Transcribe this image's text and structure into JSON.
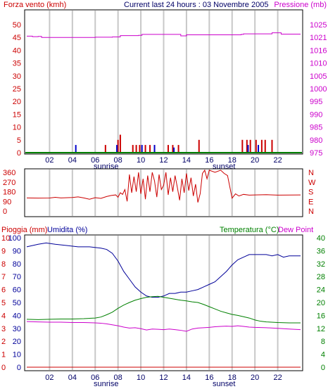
{
  "colors": {
    "wind": "#cc0000",
    "gust": "#0000cc",
    "calm": "#008000",
    "pressure": "#cc00cc",
    "direction": "#cc0000",
    "rain": "#cc0000",
    "humidity": "#000099",
    "temperature": "#008000",
    "dewpoint": "#cc00cc",
    "grid": "#c8c8c8",
    "text_dark": "#000066"
  },
  "header": {
    "left": "Forza vento (kmh)",
    "center": "Current last 24 hours : 03 Novembre 2005",
    "right": "Pressione (mb)"
  },
  "chart_data": [
    {
      "type": "bar",
      "title": "Current last 24 hours : 03 Novembre 2005",
      "ylabel": "Forza vento (kmh)",
      "y2label": "Pressione (mb)",
      "ylim": [
        0,
        50
      ],
      "y2lim": [
        975,
        1025
      ],
      "yticks": [
        "50",
        "45",
        "40",
        "35",
        "30",
        "25",
        "20",
        "15",
        "10",
        "5",
        "0"
      ],
      "y2ticks": [
        "1025",
        "1021",
        "1016",
        "1010",
        "1005",
        "1000",
        "995",
        "990",
        "985",
        "980",
        "975"
      ],
      "xlabels": [
        "02",
        "04",
        "06",
        "08",
        "10",
        "12",
        "14",
        "16",
        "18",
        "20",
        "22"
      ],
      "sunrise": "sunrise",
      "sunset": "sunset",
      "wind_bars": [
        [
          6.9,
          3
        ],
        [
          8.0,
          5
        ],
        [
          8.2,
          7
        ],
        [
          9.3,
          3
        ],
        [
          9.6,
          3
        ],
        [
          9.9,
          3
        ],
        [
          10.4,
          3
        ],
        [
          10.8,
          3
        ],
        [
          11.2,
          3
        ],
        [
          12.4,
          3
        ],
        [
          12.8,
          3
        ],
        [
          13.3,
          3
        ],
        [
          15.1,
          5
        ],
        [
          18.9,
          5
        ],
        [
          19.3,
          5
        ],
        [
          19.6,
          5
        ],
        [
          20.1,
          5
        ],
        [
          20.6,
          5
        ],
        [
          20.9,
          5
        ],
        [
          21.5,
          5
        ]
      ],
      "gust_bars": [
        [
          4.3,
          3
        ],
        [
          7.9,
          3
        ],
        [
          10.1,
          3
        ],
        [
          11.2,
          3
        ],
        [
          12.9,
          2
        ],
        [
          19.4,
          3
        ],
        [
          20.3,
          3
        ]
      ],
      "pressure": [
        [
          0.0,
          1020.5
        ],
        [
          0.5,
          1020.3
        ],
        [
          1.0,
          1020.4
        ],
        [
          1.3,
          1020.0
        ],
        [
          2.0,
          1020.0
        ],
        [
          4.0,
          1020.0
        ],
        [
          6.0,
          1020.1
        ],
        [
          7.5,
          1020.2
        ],
        [
          8.0,
          1020.2
        ],
        [
          8.2,
          1020.7
        ],
        [
          9.8,
          1020.8
        ],
        [
          10.1,
          1021.2
        ],
        [
          12.0,
          1021.2
        ],
        [
          13.2,
          1021.2
        ],
        [
          13.5,
          1020.6
        ],
        [
          14.0,
          1021.0
        ],
        [
          18.8,
          1021.2
        ],
        [
          19.0,
          1021.4
        ],
        [
          21.0,
          1021.4
        ],
        [
          21.5,
          1021.8
        ],
        [
          22.3,
          1021.3
        ],
        [
          24.0,
          1021.3
        ]
      ]
    },
    {
      "type": "line",
      "ylabel": "Direzione vento",
      "ylim": [
        0,
        360
      ],
      "yticks": [
        "360",
        "270",
        "180",
        "90",
        "0"
      ],
      "y2ticks": [
        "N",
        "W",
        "S",
        "E",
        "N"
      ],
      "direction": [
        [
          0.0,
          122
        ],
        [
          1.0,
          120
        ],
        [
          2.0,
          121
        ],
        [
          2.5,
          128
        ],
        [
          3.0,
          122
        ],
        [
          4.0,
          126
        ],
        [
          4.5,
          132
        ],
        [
          5.0,
          122
        ],
        [
          5.5,
          110
        ],
        [
          6.0,
          124
        ],
        [
          6.5,
          118
        ],
        [
          7.0,
          135
        ],
        [
          7.4,
          145
        ],
        [
          7.8,
          150
        ],
        [
          8.0,
          128
        ],
        [
          8.2,
          170
        ],
        [
          8.4,
          155
        ],
        [
          8.6,
          200
        ],
        [
          8.8,
          90
        ],
        [
          9.0,
          340
        ],
        [
          9.2,
          170
        ],
        [
          9.4,
          320
        ],
        [
          9.6,
          180
        ],
        [
          9.8,
          360
        ],
        [
          10.0,
          160
        ],
        [
          10.2,
          300
        ],
        [
          10.4,
          110
        ],
        [
          10.6,
          330
        ],
        [
          10.8,
          180
        ],
        [
          11.0,
          360
        ],
        [
          11.2,
          280
        ],
        [
          11.4,
          130
        ],
        [
          11.6,
          340
        ],
        [
          11.8,
          200
        ],
        [
          12.0,
          240
        ],
        [
          12.2,
          360
        ],
        [
          12.4,
          150
        ],
        [
          12.6,
          310
        ],
        [
          12.8,
          180
        ],
        [
          13.0,
          330
        ],
        [
          13.2,
          220
        ],
        [
          13.4,
          100
        ],
        [
          13.6,
          300
        ],
        [
          13.8,
          170
        ],
        [
          14.0,
          350
        ],
        [
          14.2,
          190
        ],
        [
          14.4,
          310
        ],
        [
          14.6,
          140
        ],
        [
          14.8,
          250
        ],
        [
          15.0,
          80
        ],
        [
          15.2,
          160
        ],
        [
          15.4,
          350
        ],
        [
          15.6,
          380
        ],
        [
          15.8,
          300
        ],
        [
          16.0,
          380
        ],
        [
          16.5,
          360
        ],
        [
          17.0,
          380
        ],
        [
          17.3,
          350
        ],
        [
          17.6,
          330
        ],
        [
          18.0,
          120
        ],
        [
          18.3,
          160
        ],
        [
          18.6,
          140
        ],
        [
          19.0,
          155
        ],
        [
          19.5,
          148
        ],
        [
          20.0,
          150
        ],
        [
          21.0,
          152
        ],
        [
          22.0,
          148
        ],
        [
          24.0,
          150
        ]
      ]
    },
    {
      "type": "line",
      "header_left": "Pioggia (mm)",
      "header_mid": "Umidita (%)",
      "header_right": "Temperatura (°C)",
      "header_right2": "Dew Point",
      "rain_ticks": [
        "10",
        "9",
        "8",
        "7",
        "6",
        "5",
        "4",
        "3",
        "2",
        "1",
        "0"
      ],
      "humidity_ticks": [
        "100",
        "90",
        "80",
        "70",
        "60",
        "50",
        "40",
        "30",
        "20",
        "10",
        "0"
      ],
      "temp_ticks": [
        "40",
        "36",
        "32",
        "28",
        "24",
        "20",
        "16",
        "12",
        "8",
        "4",
        "0"
      ],
      "ylim_temp": [
        0,
        40
      ],
      "ylim_hum": [
        0,
        100
      ],
      "xlabels": [
        "02",
        "04",
        "06",
        "08",
        "10",
        "12",
        "14",
        "16",
        "18",
        "20",
        "22"
      ],
      "sunrise": "sunrise",
      "sunset": "sunset",
      "series": [
        {
          "name": "Umidita (%)",
          "points": [
            [
              0.0,
              93
            ],
            [
              1.0,
              95
            ],
            [
              1.7,
              96
            ],
            [
              2.5,
              95
            ],
            [
              3.5,
              94
            ],
            [
              4.5,
              93
            ],
            [
              5.5,
              93
            ],
            [
              6.5,
              92
            ],
            [
              7.0,
              91
            ],
            [
              7.5,
              88
            ],
            [
              8.0,
              82
            ],
            [
              8.5,
              74
            ],
            [
              9.0,
              68
            ],
            [
              9.5,
              62
            ],
            [
              10.0,
              58
            ],
            [
              10.5,
              55
            ],
            [
              11.0,
              54
            ],
            [
              11.5,
              54
            ],
            [
              12.0,
              55
            ],
            [
              12.5,
              57
            ],
            [
              13.0,
              57
            ],
            [
              13.5,
              58
            ],
            [
              14.0,
              58
            ],
            [
              14.5,
              59
            ],
            [
              15.0,
              60
            ],
            [
              15.5,
              62
            ],
            [
              16.0,
              64
            ],
            [
              16.5,
              66
            ],
            [
              17.0,
              70
            ],
            [
              17.5,
              74
            ],
            [
              18.0,
              79
            ],
            [
              18.5,
              83
            ],
            [
              19.0,
              85
            ],
            [
              19.5,
              87
            ],
            [
              20.0,
              87
            ],
            [
              20.5,
              87
            ],
            [
              21.0,
              87
            ],
            [
              21.5,
              86
            ],
            [
              22.0,
              87
            ],
            [
              22.5,
              85
            ],
            [
              23.0,
              86
            ],
            [
              24.0,
              86
            ]
          ]
        },
        {
          "name": "Temperatura (°C)",
          "points": [
            [
              0.0,
              14.8
            ],
            [
              1.0,
              14.7
            ],
            [
              2.0,
              14.8
            ],
            [
              3.0,
              14.9
            ],
            [
              4.0,
              14.9
            ],
            [
              5.0,
              15.0
            ],
            [
              6.0,
              15.2
            ],
            [
              6.5,
              15.5
            ],
            [
              7.0,
              16.2
            ],
            [
              7.5,
              17.0
            ],
            [
              8.0,
              18.2
            ],
            [
              8.5,
              19.2
            ],
            [
              9.0,
              20.0
            ],
            [
              9.5,
              20.7
            ],
            [
              10.0,
              21.2
            ],
            [
              10.5,
              21.6
            ],
            [
              11.0,
              21.8
            ],
            [
              11.5,
              21.9
            ],
            [
              12.0,
              21.6
            ],
            [
              12.5,
              21.3
            ],
            [
              13.0,
              21.0
            ],
            [
              13.5,
              20.7
            ],
            [
              14.0,
              20.5
            ],
            [
              14.5,
              20.2
            ],
            [
              15.0,
              20.0
            ],
            [
              15.5,
              19.4
            ],
            [
              16.0,
              18.7
            ],
            [
              16.5,
              18.0
            ],
            [
              17.0,
              17.3
            ],
            [
              17.5,
              16.8
            ],
            [
              18.0,
              16.3
            ],
            [
              18.5,
              16.0
            ],
            [
              19.0,
              15.6
            ],
            [
              19.5,
              15.2
            ],
            [
              20.0,
              14.6
            ],
            [
              20.5,
              14.2
            ],
            [
              21.0,
              14.0
            ],
            [
              22.0,
              13.8
            ],
            [
              23.0,
              13.7
            ],
            [
              24.0,
              13.7
            ]
          ]
        },
        {
          "name": "Dew Point",
          "points": [
            [
              0.0,
              14.1
            ],
            [
              1.0,
              14.0
            ],
            [
              2.0,
              13.9
            ],
            [
              3.0,
              13.9
            ],
            [
              4.0,
              13.8
            ],
            [
              5.0,
              13.8
            ],
            [
              6.0,
              13.7
            ],
            [
              6.5,
              13.6
            ],
            [
              7.0,
              13.4
            ],
            [
              7.5,
              13.1
            ],
            [
              8.0,
              12.8
            ],
            [
              8.5,
              12.4
            ],
            [
              9.0,
              12.1
            ],
            [
              9.5,
              12.2
            ],
            [
              10.0,
              11.9
            ],
            [
              10.5,
              11.5
            ],
            [
              11.0,
              11.8
            ],
            [
              11.5,
              11.7
            ],
            [
              12.0,
              11.6
            ],
            [
              12.5,
              11.8
            ],
            [
              13.0,
              11.6
            ],
            [
              13.5,
              11.4
            ],
            [
              14.0,
              11.1
            ],
            [
              14.5,
              11.8
            ],
            [
              15.0,
              12.1
            ],
            [
              15.5,
              12.2
            ],
            [
              16.0,
              12.3
            ],
            [
              16.5,
              12.5
            ],
            [
              17.0,
              12.6
            ],
            [
              17.5,
              12.7
            ],
            [
              18.0,
              12.6
            ],
            [
              18.5,
              12.8
            ],
            [
              19.0,
              12.6
            ],
            [
              19.5,
              12.4
            ],
            [
              20.0,
              12.3
            ],
            [
              21.0,
              12.2
            ],
            [
              22.0,
              12.0
            ],
            [
              23.0,
              11.8
            ],
            [
              24.0,
              11.6
            ]
          ]
        },
        {
          "name": "Pioggia (mm)",
          "points": [
            [
              0.0,
              0
            ],
            [
              24.0,
              0
            ]
          ]
        }
      ]
    }
  ]
}
